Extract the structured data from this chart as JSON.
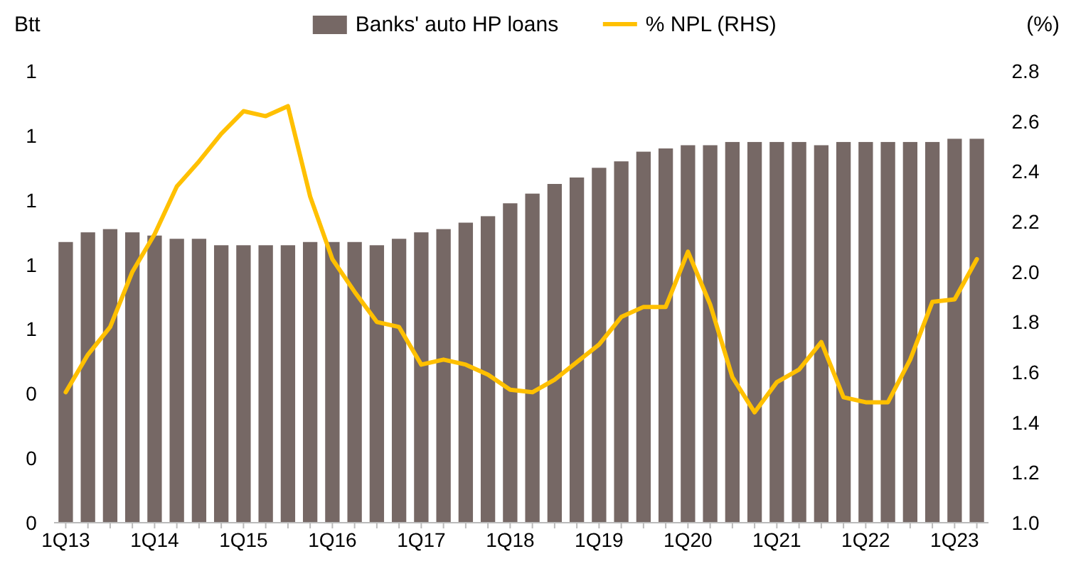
{
  "chart_data": {
    "type": "bar",
    "ylabel": "Btt",
    "y2label": "(%)",
    "categories": [
      "1Q13",
      null,
      null,
      null,
      "1Q14",
      null,
      null,
      null,
      "1Q15",
      null,
      null,
      null,
      "1Q16",
      null,
      null,
      null,
      "1Q17",
      null,
      null,
      null,
      "1Q18",
      null,
      null,
      null,
      "1Q19",
      null,
      null,
      null,
      "1Q20",
      null,
      null,
      null,
      "1Q21",
      null,
      null,
      null,
      "1Q22",
      null,
      null,
      null,
      "1Q23",
      null
    ],
    "series": [
      {
        "name": "Banks' auto HP loans",
        "color": "#766865",
        "values": [
          0.87,
          0.9,
          0.91,
          0.9,
          0.89,
          0.88,
          0.88,
          0.86,
          0.86,
          0.86,
          0.86,
          0.87,
          0.87,
          0.87,
          0.86,
          0.88,
          0.9,
          0.91,
          0.93,
          0.95,
          0.99,
          1.02,
          1.05,
          1.07,
          1.1,
          1.12,
          1.15,
          1.16,
          1.17,
          1.17,
          1.18,
          1.18,
          1.18,
          1.18,
          1.17,
          1.18,
          1.18,
          1.18,
          1.18,
          1.18,
          1.19,
          1.19
        ]
      },
      {
        "name": "% NPL (RHS)",
        "type": "line",
        "axis": "y2",
        "color": "#ffc000",
        "values": [
          1.52,
          1.67,
          1.78,
          2.0,
          2.15,
          2.34,
          2.44,
          2.55,
          2.64,
          2.62,
          2.66,
          2.3,
          2.05,
          1.92,
          1.8,
          1.78,
          1.63,
          1.65,
          1.63,
          1.59,
          1.53,
          1.52,
          1.57,
          1.64,
          1.71,
          1.82,
          1.86,
          1.86,
          2.08,
          1.87,
          1.58,
          1.44,
          1.56,
          1.61,
          1.72,
          1.5,
          1.48,
          1.48,
          1.65,
          1.88,
          1.89,
          2.05
        ]
      }
    ],
    "ylim": [
      0,
      1.4
    ],
    "yticks": [
      0,
      {
        "value": 0.2,
        "label": "0"
      },
      {
        "value": 0.4,
        "label": "0"
      },
      {
        "value": 0.6,
        "label": "1"
      },
      {
        "value": 0.8,
        "label": "1"
      },
      {
        "value": 1,
        "label": "1"
      },
      {
        "value": 1.2,
        "label": "1"
      },
      {
        "value": 1.4,
        "label": "1"
      }
    ],
    "y2lim": [
      1,
      2.8
    ],
    "y2ticks": [
      {
        "value": 1,
        "label": "1.0"
      },
      1.2,
      1.4,
      1.6,
      1.8,
      {
        "value": 2,
        "label": "2.0"
      },
      2.2,
      2.4,
      2.6,
      2.8
    ],
    "legend": "top",
    "grid": false,
    "line_style": "solid",
    "marker": "none"
  }
}
